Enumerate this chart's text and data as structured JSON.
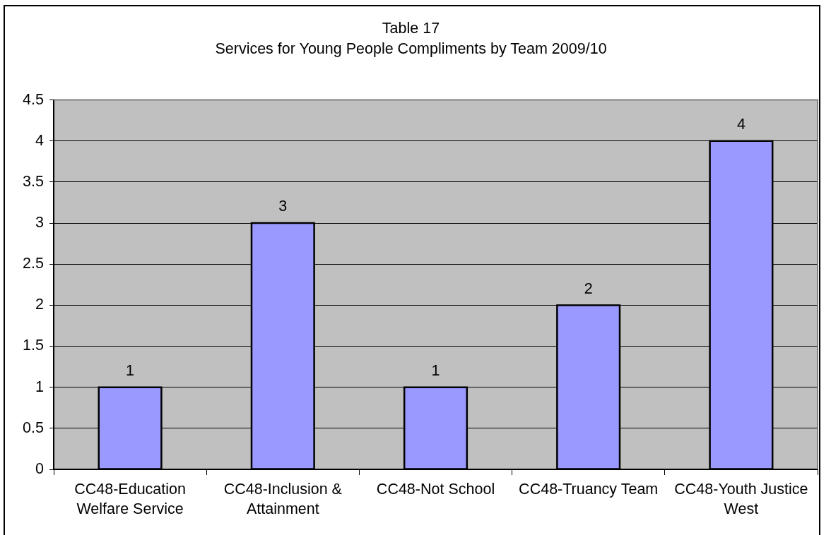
{
  "chart_data": {
    "type": "bar",
    "title": "Table 17",
    "subtitle": "Services for Young People Compliments by Team 2009/10",
    "categories": [
      "CC48-Education Welfare Service",
      "CC48-Inclusion & Attainment",
      "CC48-Not School",
      "CC48-Truancy Team",
      "CC48-Youth Justice West"
    ],
    "values": [
      1,
      3,
      1,
      2,
      4
    ],
    "color": "#9999ff",
    "ylim": [
      0,
      4.5
    ],
    "yticks": [
      0,
      0.5,
      1,
      1.5,
      2,
      2.5,
      3,
      3.5,
      4,
      4.5
    ],
    "grid": "y",
    "data_labels": true
  }
}
